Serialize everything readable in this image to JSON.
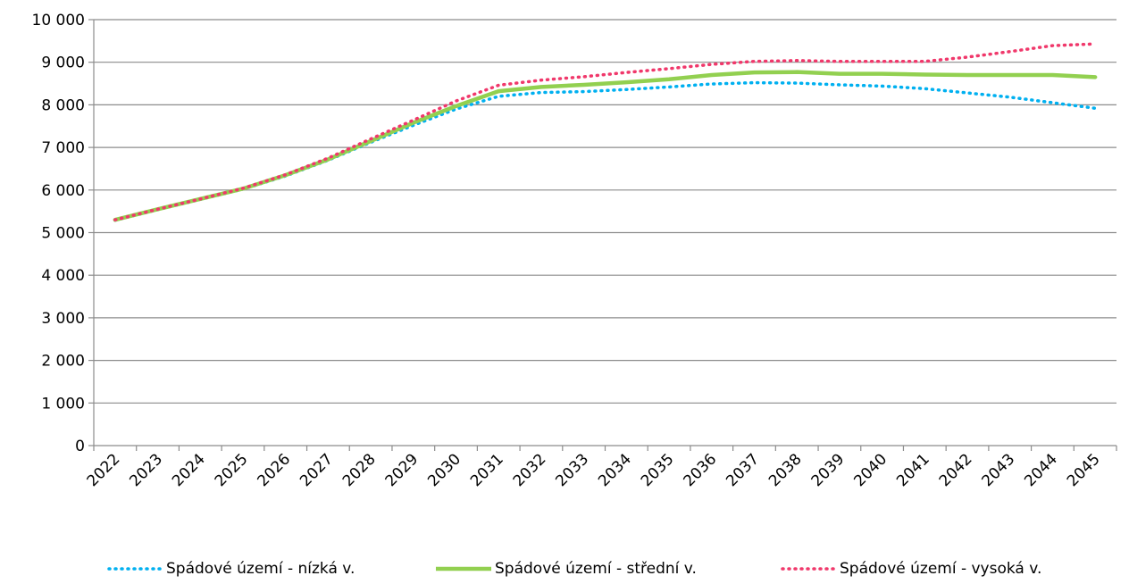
{
  "chart_data": {
    "type": "line",
    "categories": [
      "2022",
      "2023",
      "2024",
      "2025",
      "2026",
      "2027",
      "2028",
      "2029",
      "2030",
      "2031",
      "2032",
      "2033",
      "2034",
      "2035",
      "2036",
      "2037",
      "2038",
      "2039",
      "2040",
      "2041",
      "2042",
      "2043",
      "2044",
      "2045"
    ],
    "ylim": [
      0,
      10000
    ],
    "yticks": [
      0,
      1000,
      2000,
      3000,
      4000,
      5000,
      6000,
      7000,
      8000,
      9000,
      10000
    ],
    "ytick_labels": [
      "0",
      "1 000",
      "2 000",
      "3 000",
      "4 000",
      "5 000",
      "6 000",
      "7 000",
      "8 000",
      "9 000",
      "10 000"
    ],
    "grid": "horizontal",
    "legend_position": "bottom",
    "series": [
      {
        "name": "Spádové území - nízká v.",
        "color": "#00B0F0",
        "style": "dotted",
        "values": [
          5290,
          5540,
          5780,
          6020,
          6330,
          6700,
          7120,
          7520,
          7900,
          8200,
          8290,
          8310,
          8360,
          8420,
          8490,
          8520,
          8510,
          8470,
          8440,
          8380,
          8280,
          8180,
          8050,
          7920
        ]
      },
      {
        "name": "Spádové území - střední v.",
        "color": "#92D050",
        "style": "solid",
        "values": [
          5300,
          5550,
          5790,
          6030,
          6350,
          6720,
          7150,
          7580,
          7970,
          8320,
          8420,
          8470,
          8530,
          8600,
          8700,
          8760,
          8770,
          8730,
          8730,
          8710,
          8700,
          8700,
          8700,
          8650
        ]
      },
      {
        "name": "Spádové území - vysoká v.",
        "color": "#F0386B",
        "style": "dotted",
        "values": [
          5300,
          5550,
          5790,
          6040,
          6360,
          6750,
          7200,
          7640,
          8090,
          8460,
          8580,
          8660,
          8760,
          8850,
          8950,
          9020,
          9040,
          9020,
          9020,
          9020,
          9120,
          9250,
          9390,
          9430
        ]
      }
    ]
  }
}
